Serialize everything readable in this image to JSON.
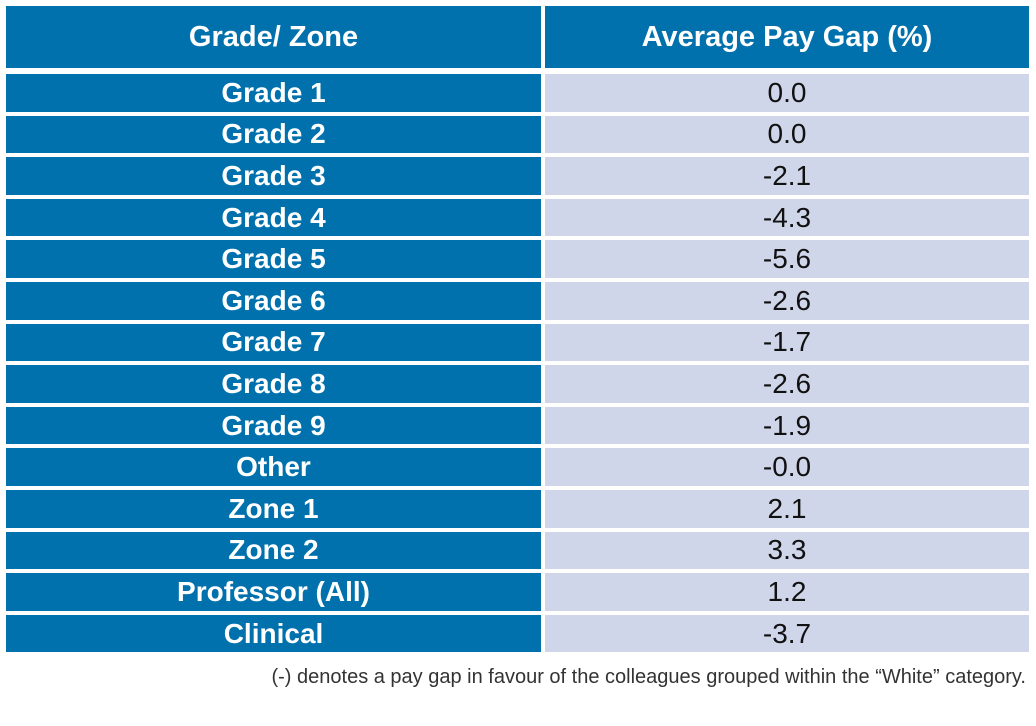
{
  "table": {
    "headers": [
      "Grade/ Zone",
      "Average Pay Gap (%)"
    ],
    "rows": [
      {
        "grade": "Grade 1",
        "gap": "0.0"
      },
      {
        "grade": "Grade 2",
        "gap": "0.0"
      },
      {
        "grade": "Grade 3",
        "gap": "-2.1"
      },
      {
        "grade": "Grade 4",
        "gap": "-4.3"
      },
      {
        "grade": "Grade 5",
        "gap": "-5.6"
      },
      {
        "grade": "Grade 6",
        "gap": "-2.6"
      },
      {
        "grade": "Grade 7",
        "gap": "-1.7"
      },
      {
        "grade": "Grade 8",
        "gap": "-2.6"
      },
      {
        "grade": "Grade 9",
        "gap": "-1.9"
      },
      {
        "grade": "Other",
        "gap": "-0.0"
      },
      {
        "grade": "Zone 1",
        "gap": "2.1"
      },
      {
        "grade": "Zone 2",
        "gap": "3.3"
      },
      {
        "grade": "Professor (All)",
        "gap": "1.2"
      },
      {
        "grade": "Clinical",
        "gap": "-3.7"
      }
    ]
  },
  "footnote": "(-) denotes a pay gap in favour of the colleagues grouped within the “White” category.",
  "colors": {
    "header_bg": "#0071ac",
    "left_cell_bg": "#0071ac",
    "right_cell_bg": "#d0d6ea"
  }
}
